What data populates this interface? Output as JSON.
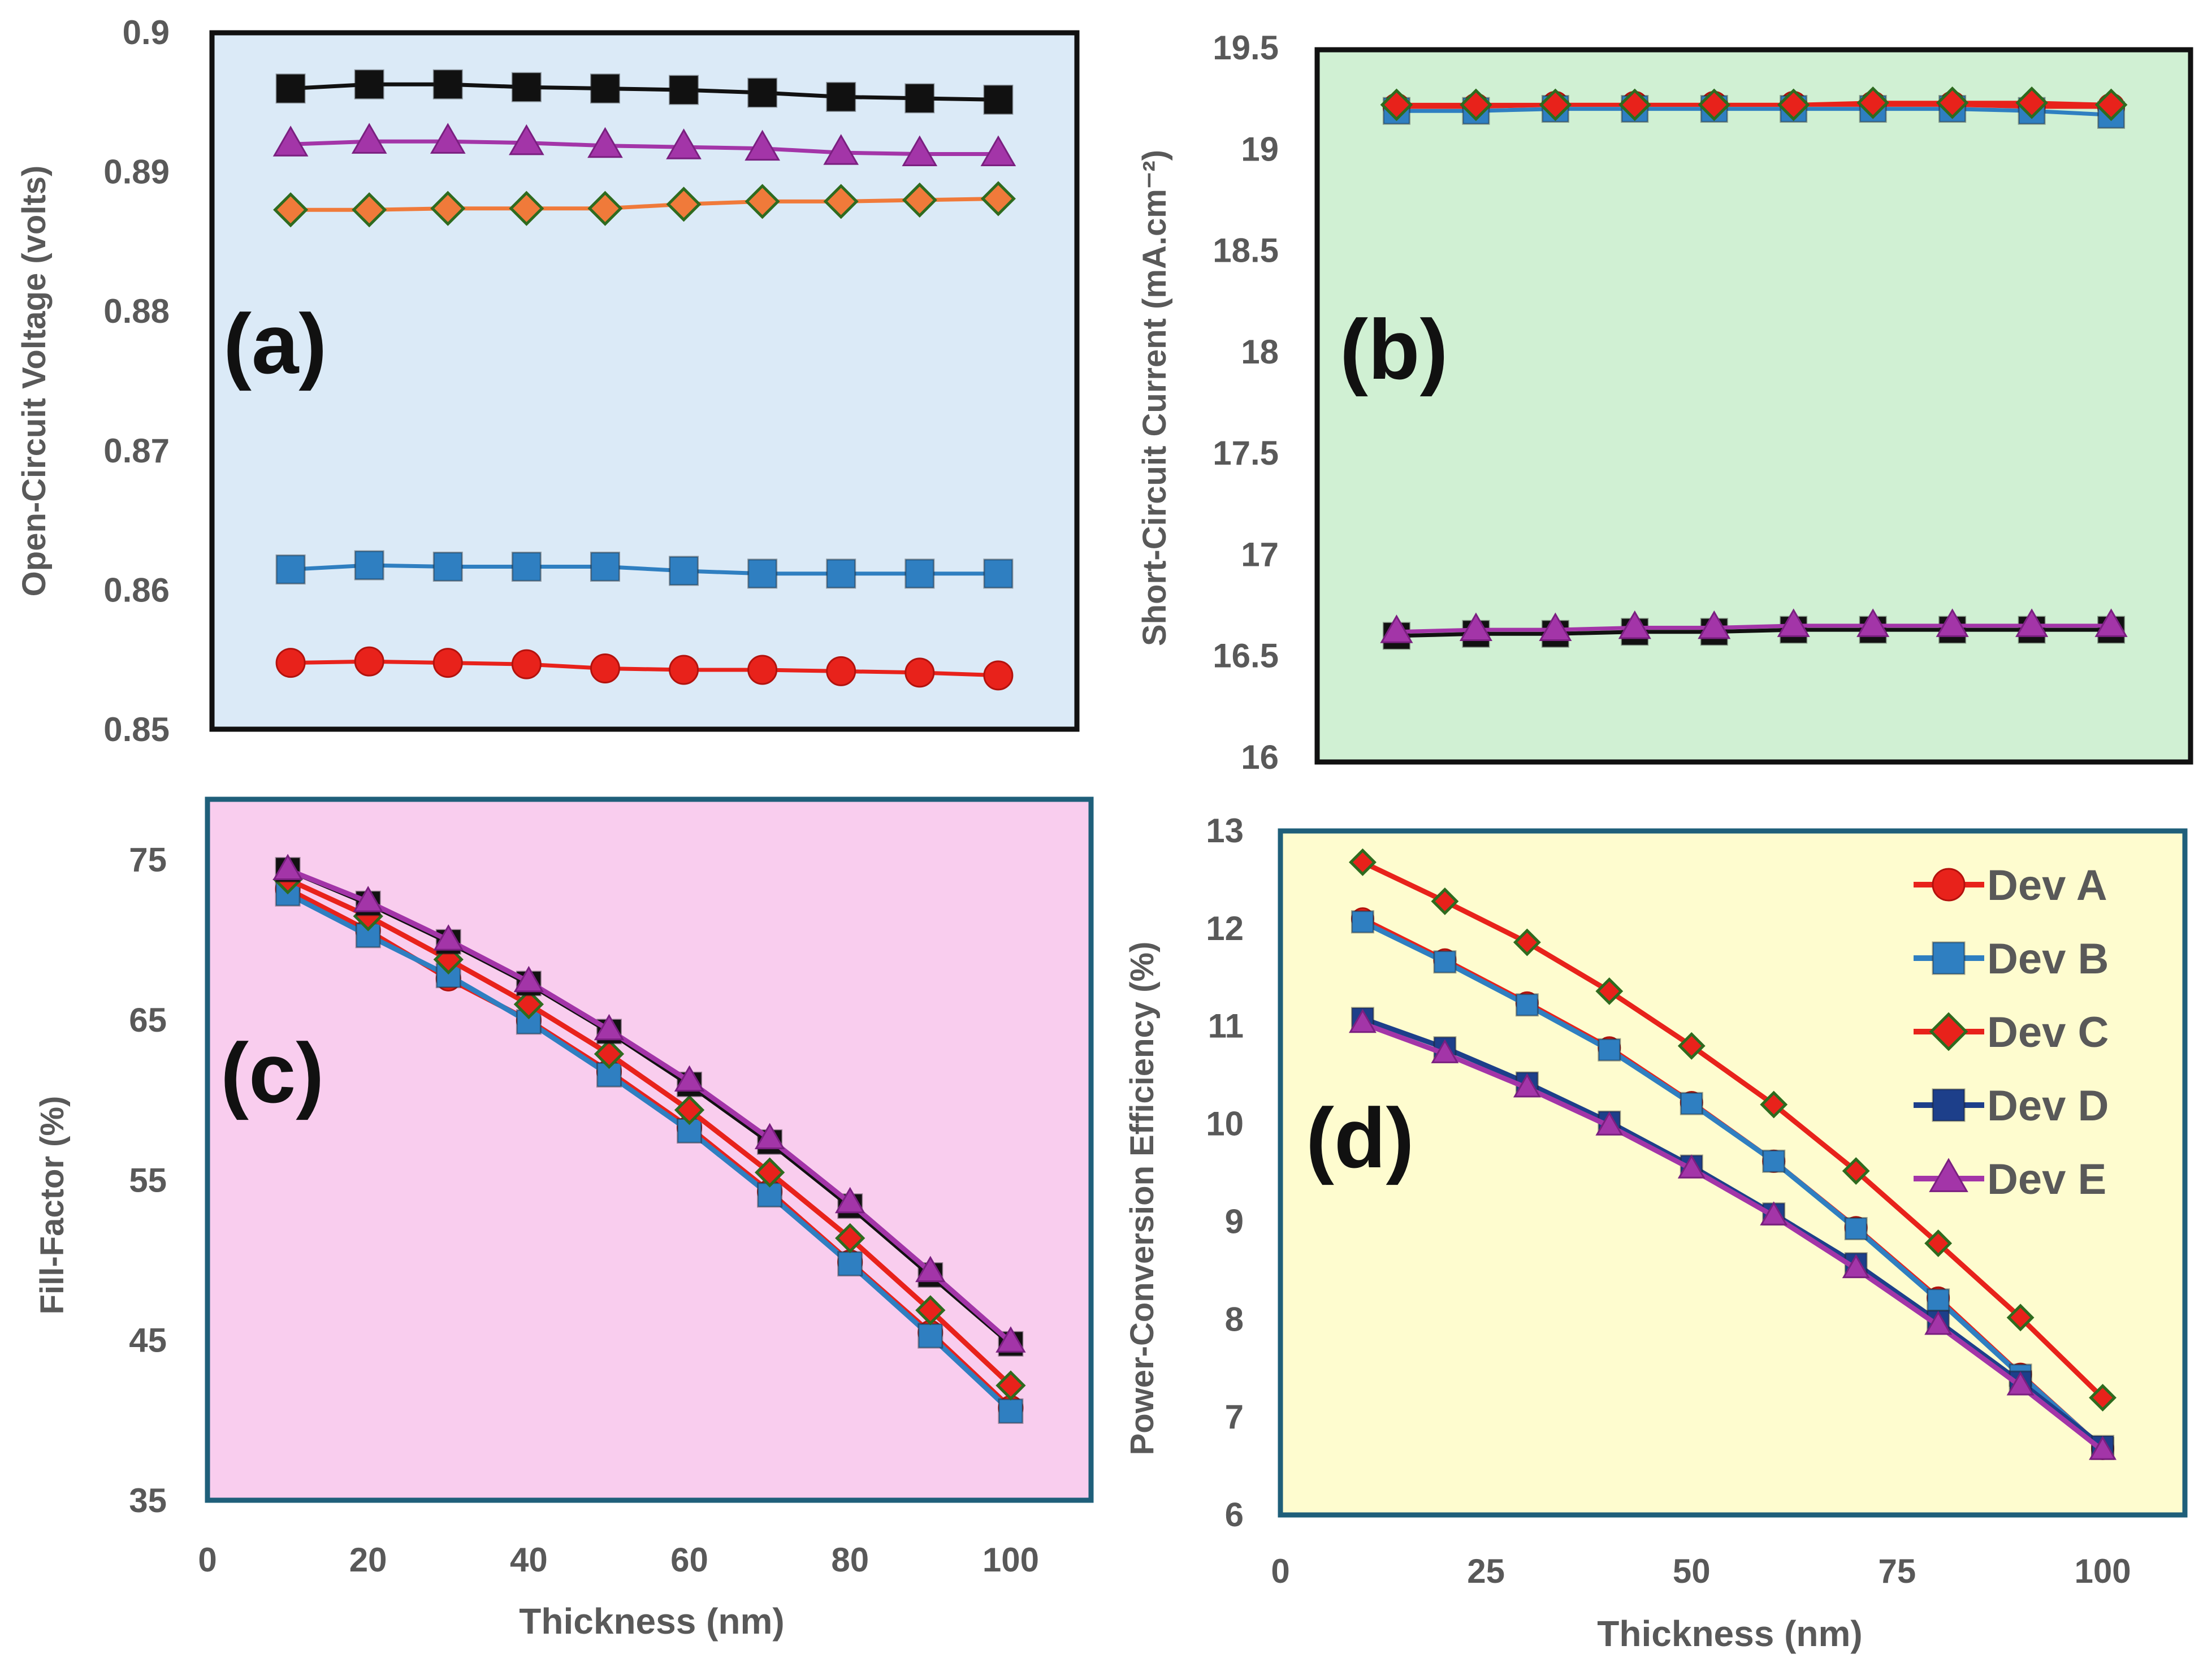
{
  "chart_data": [
    {
      "type": "line",
      "panel_label": "(a)",
      "title": "",
      "xlabel": "",
      "ylabel": "Open-Circuit Voltage (volts)",
      "ylim": [
        0.85,
        0.9
      ],
      "yticks": [
        "0.85",
        "0.86",
        "0.87",
        "0.88",
        "0.89",
        "0.9"
      ],
      "xlim": [
        0,
        110
      ],
      "background": "#dbeaf7",
      "x": [
        10,
        20,
        30,
        40,
        50,
        60,
        70,
        80,
        90,
        100
      ],
      "series": [
        {
          "name": "Dev A",
          "color": "#e8221b",
          "marker": "circle",
          "values": [
            0.8548,
            0.8549,
            0.8548,
            0.8547,
            0.8544,
            0.8543,
            0.8543,
            0.8542,
            0.8541,
            0.8539
          ]
        },
        {
          "name": "Dev B",
          "color": "#2f7fc1",
          "marker": "square",
          "values": [
            0.8615,
            0.8618,
            0.8617,
            0.8617,
            0.8617,
            0.8614,
            0.8612,
            0.8612,
            0.8612,
            0.8612
          ]
        },
        {
          "name": "Dev C",
          "color": "#f07a3a",
          "marker": "diamond",
          "values": [
            0.8873,
            0.8873,
            0.8874,
            0.8874,
            0.8874,
            0.8877,
            0.8879,
            0.8879,
            0.888,
            0.8881
          ]
        },
        {
          "name": "Dev D",
          "color": "#111111",
          "marker": "square",
          "values": [
            0.896,
            0.8963,
            0.8963,
            0.8961,
            0.896,
            0.8959,
            0.8957,
            0.8954,
            0.8953,
            0.8952
          ]
        },
        {
          "name": "Dev E",
          "color": "#a335a8",
          "marker": "triangle",
          "values": [
            0.892,
            0.8922,
            0.8922,
            0.8921,
            0.8919,
            0.8918,
            0.8917,
            0.8914,
            0.8913,
            0.8913
          ]
        }
      ]
    },
    {
      "type": "line",
      "panel_label": "(b)",
      "title": "",
      "xlabel": "",
      "ylabel": "Short-Circuit Current (mA.cm⁻²)",
      "ylim": [
        16,
        19.5
      ],
      "yticks": [
        "16",
        "16.5",
        "17",
        "17.5",
        "18",
        "18.5",
        "19",
        "19.5"
      ],
      "xlim": [
        0,
        110
      ],
      "background": "#d0f0d3",
      "x": [
        10,
        20,
        30,
        40,
        50,
        60,
        70,
        80,
        90,
        100
      ],
      "series": [
        {
          "name": "Dev A",
          "color": "#e8221b",
          "marker": "circle",
          "values": [
            19.21,
            19.21,
            19.22,
            19.22,
            19.22,
            19.22,
            19.22,
            19.22,
            19.21,
            19.21
          ]
        },
        {
          "name": "Dev B",
          "color": "#2f7fc1",
          "marker": "square",
          "values": [
            19.19,
            19.19,
            19.2,
            19.2,
            19.2,
            19.2,
            19.2,
            19.2,
            19.19,
            19.17
          ]
        },
        {
          "name": "Dev C",
          "color": "#e8221b",
          "marker": "diamond",
          "values": [
            19.22,
            19.22,
            19.22,
            19.22,
            19.22,
            19.22,
            19.23,
            19.23,
            19.23,
            19.22
          ]
        },
        {
          "name": "Dev D",
          "color": "#111111",
          "marker": "square",
          "values": [
            16.6,
            16.61,
            16.61,
            16.62,
            16.62,
            16.63,
            16.63,
            16.63,
            16.63,
            16.63
          ]
        },
        {
          "name": "Dev E",
          "color": "#a335a8",
          "marker": "triangle",
          "values": [
            16.62,
            16.63,
            16.63,
            16.64,
            16.64,
            16.65,
            16.65,
            16.65,
            16.65,
            16.65
          ]
        }
      ]
    },
    {
      "type": "line",
      "panel_label": "(c)",
      "title": "",
      "xlabel": "Thickness (nm)",
      "ylabel": "Fill-Factor (%)",
      "ylim": [
        35,
        80
      ],
      "yticks": [
        "35",
        "45",
        "55",
        "65",
        "75"
      ],
      "ytick_values": [
        35,
        45,
        55,
        65,
        75
      ],
      "xlim": [
        0,
        110
      ],
      "xticks": [
        "0",
        "20",
        "40",
        "60",
        "80",
        "100"
      ],
      "xtick_values": [
        0,
        20,
        40,
        60,
        80,
        100
      ],
      "background": "#f9cdee",
      "x": [
        10,
        20,
        30,
        40,
        50,
        60,
        70,
        80,
        90,
        100
      ],
      "series": [
        {
          "name": "Dev A",
          "color": "#e8221b",
          "marker": "circle",
          "values": [
            73.2,
            70.6,
            67.6,
            65.0,
            61.8,
            58.3,
            54.3,
            49.9,
            45.5,
            40.8
          ]
        },
        {
          "name": "Dev B",
          "color": "#2f7fc1",
          "marker": "square",
          "values": [
            72.9,
            70.3,
            67.8,
            64.9,
            61.6,
            58.1,
            54.1,
            49.8,
            45.3,
            40.6
          ]
        },
        {
          "name": "Dev C",
          "color": "#e8221b",
          "marker": "diamond",
          "values": [
            73.8,
            71.5,
            68.8,
            66.0,
            62.9,
            59.4,
            55.5,
            51.4,
            46.9,
            42.2
          ]
        },
        {
          "name": "Dev D",
          "color": "#111111",
          "marker": "square",
          "values": [
            74.4,
            72.3,
            69.9,
            67.3,
            64.3,
            61.0,
            57.4,
            53.4,
            49.1,
            44.8
          ]
        },
        {
          "name": "Dev E",
          "color": "#a335a8",
          "marker": "triangle",
          "values": [
            74.4,
            72.4,
            70.0,
            67.4,
            64.4,
            61.2,
            57.6,
            53.6,
            49.3,
            44.9
          ]
        }
      ]
    },
    {
      "type": "line",
      "panel_label": "(d)",
      "title": "",
      "xlabel": "Thickness (nm)",
      "ylabel": "Power-Conversion Efficiency (%)",
      "ylim": [
        6,
        13
      ],
      "yticks": [
        "6",
        "7",
        "8",
        "9",
        "10",
        "11",
        "12",
        "13"
      ],
      "ytick_values": [
        6,
        7,
        8,
        9,
        10,
        11,
        12,
        13
      ],
      "xlim": [
        0,
        110
      ],
      "xticks": [
        "0",
        "25",
        "50",
        "75",
        "100"
      ],
      "xtick_values": [
        0,
        25,
        50,
        75,
        100
      ],
      "background": "#fefccf",
      "legend": "top-right",
      "x": [
        10,
        20,
        30,
        40,
        50,
        60,
        70,
        80,
        90,
        100
      ],
      "series": [
        {
          "name": "Dev A",
          "color": "#e8221b",
          "marker": "circle",
          "values": [
            12.1,
            11.68,
            11.24,
            10.78,
            10.22,
            9.62,
            8.94,
            8.22,
            7.44,
            6.68
          ]
        },
        {
          "name": "Dev B",
          "color": "#2f7fc1",
          "marker": "square",
          "values": [
            12.07,
            11.66,
            11.22,
            10.76,
            10.21,
            9.62,
            8.93,
            8.2,
            7.43,
            6.68
          ]
        },
        {
          "name": "Dev C",
          "color": "#e8221b",
          "marker": "diamond",
          "values": [
            12.68,
            12.28,
            11.86,
            11.36,
            10.8,
            10.2,
            9.52,
            8.78,
            8.02,
            7.2
          ]
        },
        {
          "name": "Dev D",
          "color": "#1d3f8a",
          "marker": "square",
          "values": [
            11.08,
            10.78,
            10.42,
            10.02,
            9.57,
            9.08,
            8.57,
            7.98,
            7.36,
            6.7
          ]
        },
        {
          "name": "Dev E",
          "color": "#a335a8",
          "marker": "triangle",
          "values": [
            11.03,
            10.72,
            10.37,
            9.98,
            9.54,
            9.06,
            8.52,
            7.94,
            7.32,
            6.66
          ]
        }
      ]
    }
  ]
}
